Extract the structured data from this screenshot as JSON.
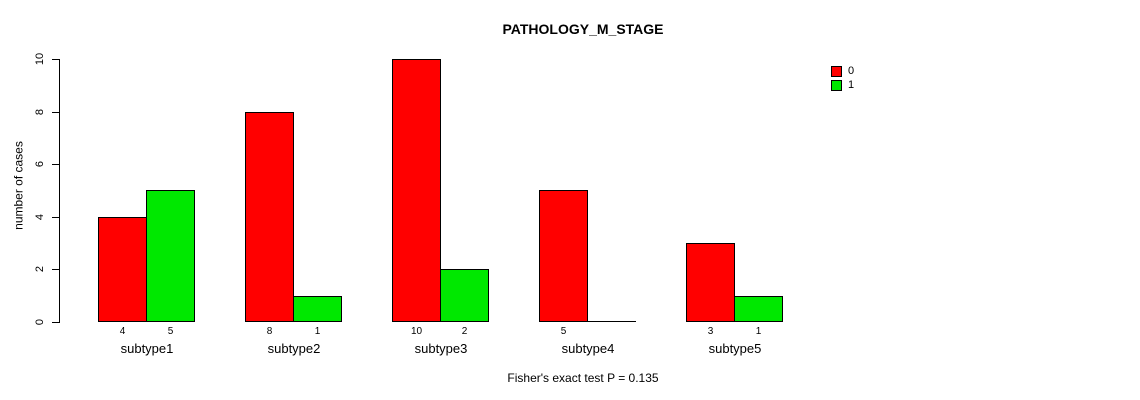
{
  "title": "PATHOLOGY_M_STAGE",
  "footer": "Fisher's exact test P = 0.135",
  "colors": {
    "series0": "#FF0000",
    "series1": "#00E800",
    "axis": "#000000",
    "background": "#FFFFFF"
  },
  "legend": {
    "items": [
      {
        "label": "0",
        "color": "#FF0000"
      },
      {
        "label": "1",
        "color": "#00E800"
      }
    ]
  },
  "chart_data": {
    "type": "bar",
    "title": "PATHOLOGY_M_STAGE",
    "xlabel": "",
    "ylabel": "number of cases",
    "categories": [
      "subtype1",
      "subtype2",
      "subtype3",
      "subtype4",
      "subtype5"
    ],
    "series": [
      {
        "name": "0",
        "color": "#FF0000",
        "values": [
          4,
          8,
          10,
          5,
          3
        ]
      },
      {
        "name": "1",
        "color": "#00E800",
        "values": [
          5,
          1,
          2,
          0,
          1
        ]
      }
    ],
    "bar_count_labels": {
      "subtype1": [
        "4",
        "5"
      ],
      "subtype2": [
        "8",
        "1"
      ],
      "subtype3": [
        "10",
        "2"
      ],
      "subtype4": [
        "5",
        ""
      ],
      "subtype5": [
        "3",
        "1"
      ]
    },
    "ylim": [
      0,
      10
    ],
    "yticks": [
      0,
      2,
      4,
      6,
      8,
      10
    ],
    "grid": false,
    "legend_position": "top-right",
    "annotation": "Fisher's exact test P = 0.135"
  }
}
